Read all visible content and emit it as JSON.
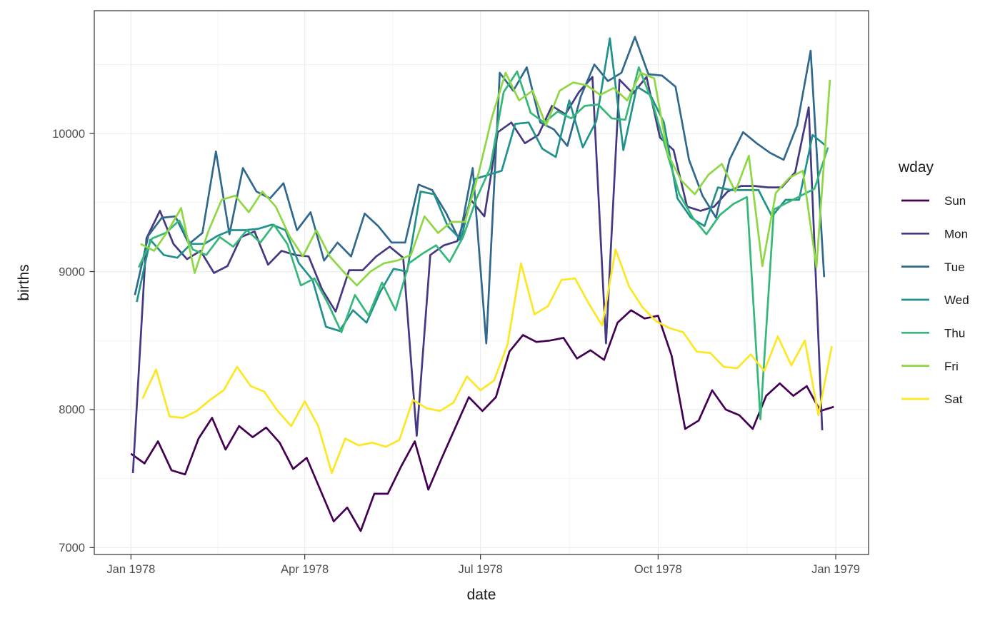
{
  "figure": {
    "background": "#ffffff",
    "panel_background": "#ffffff"
  },
  "chart_data": {
    "type": "line",
    "title": "",
    "xlabel": "date",
    "ylabel": "births",
    "legend_title": "wday",
    "legend_position": "right",
    "grid": "on",
    "x_axis": {
      "tick_labels": [
        "Jan 1978",
        "Apr 1978",
        "Jul 1978",
        "Oct 1978",
        "Jan 1979"
      ],
      "tick_days": [
        1,
        91,
        182,
        274,
        366
      ],
      "minor_gridline_days": [
        46,
        136.5,
        228,
        320
      ],
      "domain_days": [
        -18,
        383
      ],
      "note": "day 1 = Jan 1 1978; weekly data points per weekday series"
    },
    "y_axis": {
      "tick_labels": [
        "7000",
        "8000",
        "9000",
        "10000"
      ],
      "ticks": [
        7000,
        8000,
        9000,
        10000
      ],
      "minor_gridlines": [
        7500,
        8500,
        9500,
        10500
      ],
      "domain": [
        6950,
        10890
      ]
    },
    "colors": {
      "gridline": "#ebebeb",
      "panel_border": "#333333",
      "tick_mark": "#333333",
      "tick_label": "#4d4d4d",
      "axis_title": "#1a1a1a"
    },
    "series": [
      {
        "name": "Sun",
        "color": "#440154",
        "first_day": 1,
        "step_days": 7,
        "values": [
          7680,
          7610,
          7770,
          7560,
          7530,
          7790,
          7940,
          7710,
          7880,
          7800,
          7870,
          7760,
          7570,
          7650,
          7420,
          7190,
          7290,
          7120,
          7390,
          7390,
          7590,
          7770,
          7420,
          7650,
          7870,
          8090,
          7990,
          8090,
          8420,
          8540,
          8490,
          8500,
          8520,
          8370,
          8430,
          8360,
          8630,
          8720,
          8660,
          8680,
          8390,
          7860,
          7920,
          8140,
          8000,
          7960,
          7860,
          8100,
          8190,
          8100,
          8170,
          7990,
          8020
        ]
      },
      {
        "name": "Mon",
        "color": "#443983",
        "first_day": 2,
        "step_days": 7,
        "values": [
          7540,
          9240,
          9440,
          9200,
          9090,
          9150,
          8990,
          9040,
          9250,
          9290,
          9050,
          9150,
          9120,
          9110,
          8870,
          8710,
          9010,
          9010,
          9110,
          9180,
          9100,
          7810,
          9120,
          9190,
          9220,
          9520,
          9400,
          10010,
          10080,
          9930,
          9990,
          10200,
          10140,
          10300,
          10410,
          8480,
          10390,
          10290,
          10410,
          9970,
          9880,
          9470,
          9440,
          9470,
          9580,
          9620,
          9620,
          9610,
          9610,
          9720,
          10190,
          7850
        ]
      },
      {
        "name": "Tue",
        "color": "#31688e",
        "first_day": 3,
        "step_days": 7,
        "values": [
          8830,
          9260,
          9390,
          9400,
          9200,
          9280,
          9870,
          9270,
          9750,
          9580,
          9530,
          9640,
          9300,
          9430,
          9080,
          9210,
          9110,
          9420,
          9330,
          9210,
          9210,
          9630,
          9590,
          9430,
          9230,
          9750,
          8480,
          10440,
          10310,
          10480,
          10080,
          10030,
          9910,
          10270,
          10500,
          10380,
          10440,
          10700,
          10430,
          10420,
          10340,
          9810,
          9550,
          9390,
          9810,
          10010,
          9930,
          9860,
          9810,
          10060,
          10600,
          8960
        ]
      },
      {
        "name": "Wed",
        "color": "#21918c",
        "first_day": 4,
        "step_days": 7,
        "values": [
          8780,
          9230,
          9120,
          9100,
          9200,
          9200,
          9260,
          9300,
          9300,
          9310,
          9340,
          9300,
          9060,
          8940,
          8600,
          8570,
          8720,
          8630,
          8850,
          9020,
          9000,
          9580,
          9560,
          9330,
          9230,
          9670,
          9700,
          9730,
          10070,
          10080,
          9890,
          9830,
          10240,
          9900,
          10090,
          10690,
          9880,
          10340,
          10280,
          10080,
          9530,
          9390,
          9330,
          9610,
          9590,
          9590,
          9590,
          9400,
          9520,
          9520,
          9990,
          9910
        ]
      },
      {
        "name": "Thu",
        "color": "#35b779",
        "first_day": 5,
        "step_days": 7,
        "values": [
          9030,
          9240,
          9280,
          9370,
          9160,
          9120,
          9250,
          9180,
          9300,
          9210,
          9340,
          9200,
          8900,
          8950,
          8770,
          8560,
          8830,
          8680,
          8920,
          8720,
          9060,
          9130,
          9190,
          9070,
          9250,
          9530,
          9750,
          10300,
          10450,
          10150,
          10080,
          10160,
          10110,
          10200,
          10210,
          10110,
          10100,
          10480,
          10230,
          9890,
          9560,
          9390,
          9270,
          9410,
          9490,
          9540,
          7930,
          9450,
          9500,
          9550,
          9600,
          9900
        ]
      },
      {
        "name": "Fri",
        "color": "#8fd744",
        "first_day": 6,
        "step_days": 7,
        "values": [
          9200,
          9150,
          9290,
          9460,
          8990,
          9290,
          9520,
          9550,
          9430,
          9580,
          9470,
          9260,
          9110,
          9300,
          9110,
          9000,
          8900,
          9000,
          9060,
          9080,
          9120,
          9400,
          9280,
          9360,
          9360,
          9710,
          10120,
          10440,
          10240,
          10310,
          10060,
          10310,
          10370,
          10350,
          10280,
          10330,
          10240,
          10440,
          10400,
          9850,
          9660,
          9560,
          9700,
          9780,
          9580,
          9840,
          9040,
          9570,
          9680,
          9730,
          9030,
          10390
        ]
      },
      {
        "name": "Sat",
        "color": "#fde725",
        "first_day": 7,
        "step_days": 7,
        "values": [
          8080,
          8290,
          7950,
          7940,
          7990,
          8070,
          8140,
          8310,
          8170,
          8130,
          7990,
          7880,
          8060,
          7880,
          7540,
          7790,
          7740,
          7760,
          7730,
          7780,
          8070,
          8010,
          7990,
          8050,
          8240,
          8140,
          8210,
          8470,
          9060,
          8690,
          8750,
          8940,
          8950,
          8770,
          8610,
          9160,
          8890,
          8740,
          8640,
          8590,
          8560,
          8420,
          8410,
          8310,
          8300,
          8400,
          8280,
          8530,
          8320,
          8500,
          7960,
          8460
        ]
      }
    ]
  }
}
